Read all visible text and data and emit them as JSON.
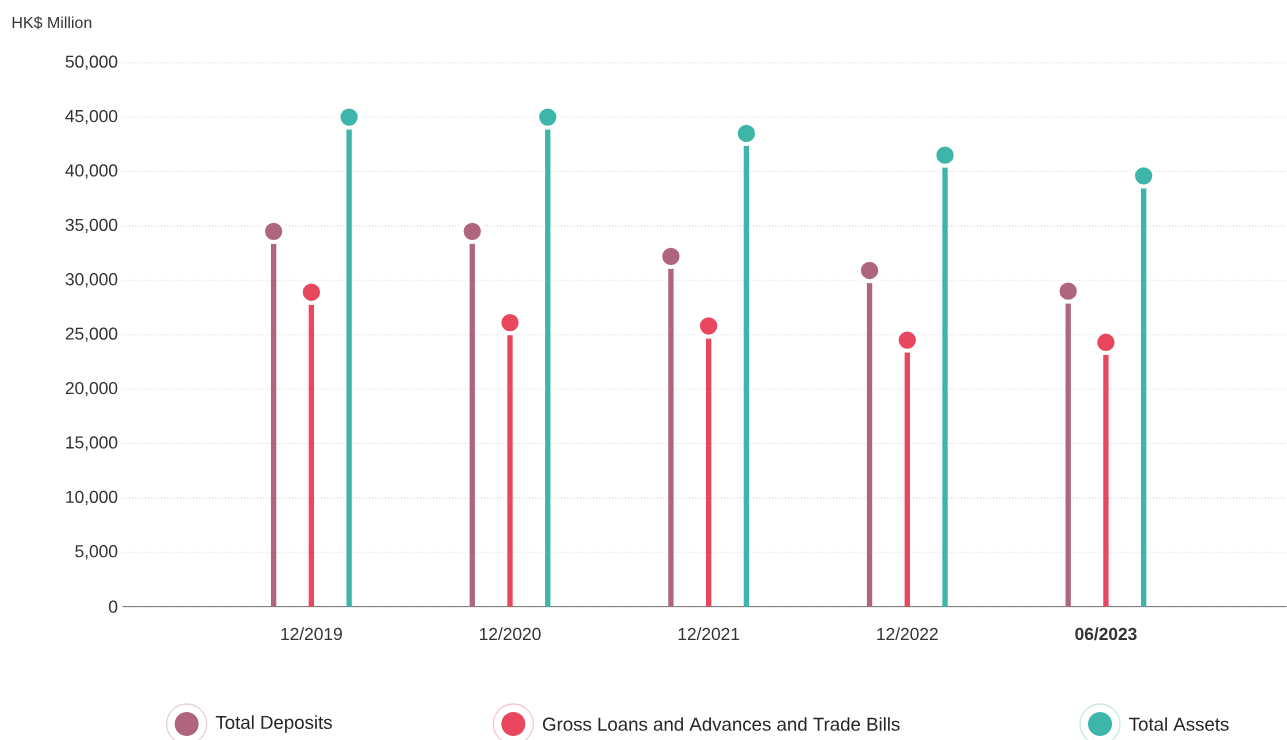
{
  "chart_data": {
    "type": "lollipop",
    "ylabel": "HK$ Million",
    "categories": [
      "12/2019",
      "12/2020",
      "12/2021",
      "12/2022",
      "**06/2023**"
    ],
    "series": [
      {
        "name": "Total Deposits",
        "color": "#b0657f",
        "values": [
          34500,
          34500,
          32200,
          30900,
          29000
        ]
      },
      {
        "name": "Gross Loans and Advances and Trade Bills",
        "color": "#e8475f",
        "values": [
          28900,
          26100,
          25800,
          24500,
          24300
        ]
      },
      {
        "name": "Total Assets",
        "color": "#3db5a8",
        "values": [
          45000,
          45000,
          43500,
          41500,
          39600
        ]
      }
    ],
    "ylim": [
      0,
      50000
    ],
    "yticks": [
      {
        "value": 0,
        "label": "0"
      },
      {
        "value": 5000,
        "label": "5,000"
      },
      {
        "value": 10000,
        "label": "10,000"
      },
      {
        "value": 15000,
        "label": "15,000"
      },
      {
        "value": 20000,
        "label": "20,000"
      },
      {
        "value": 25000,
        "label": "25,000"
      },
      {
        "value": 30000,
        "label": "30,000"
      },
      {
        "value": 35000,
        "label": "35,000"
      },
      {
        "value": 40000,
        "label": "40,000"
      },
      {
        "value": 45000,
        "label": "45,000"
      },
      {
        "value": 50000,
        "label": "50,000"
      }
    ],
    "grid": "y",
    "legend": "bottom",
    "marker": "circle"
  }
}
